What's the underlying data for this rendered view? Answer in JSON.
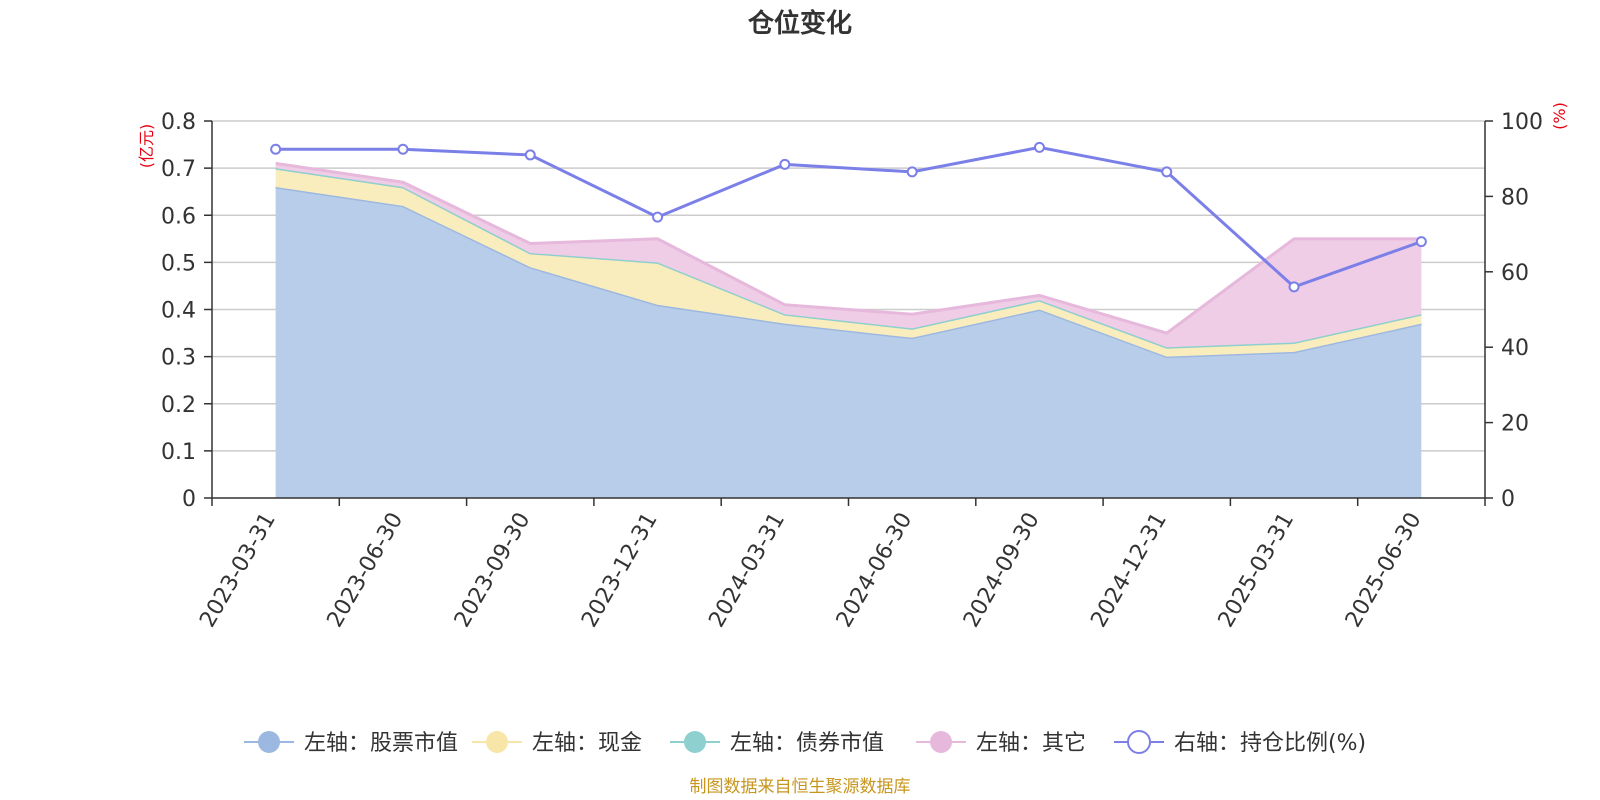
{
  "chart_data": {
    "type": "area",
    "title": "仓位变化",
    "left_unit": "(亿元)",
    "right_unit": "(%)",
    "categories": [
      "2023-03-31",
      "2023-06-30",
      "2023-09-30",
      "2023-12-31",
      "2024-03-31",
      "2024-06-30",
      "2024-09-30",
      "2024-12-31",
      "2025-03-31",
      "2025-06-30"
    ],
    "left_axis": {
      "min": 0,
      "max": 0.8,
      "ticks": [
        "0",
        "0.1",
        "0.2",
        "0.3",
        "0.4",
        "0.5",
        "0.6",
        "0.7",
        "0.8"
      ]
    },
    "right_axis": {
      "min": 0,
      "max": 100,
      "ticks": [
        "0",
        "20",
        "40",
        "60",
        "80",
        "100"
      ]
    },
    "series": [
      {
        "name": "左轴：股票市值",
        "axis": "left",
        "stack": true,
        "color": "#9db8e0",
        "fill": "#b8cdea",
        "values": [
          0.66,
          0.62,
          0.49,
          0.41,
          0.37,
          0.34,
          0.4,
          0.3,
          0.31,
          0.37
        ]
      },
      {
        "name": "左轴：现金",
        "axis": "left",
        "stack": true,
        "color": "#f8e6a8",
        "fill": "#faedbd",
        "values": [
          0.04,
          0.04,
          0.03,
          0.09,
          0.02,
          0.02,
          0.02,
          0.02,
          0.02,
          0.02
        ]
      },
      {
        "name": "左轴：债券市值",
        "axis": "left",
        "stack": true,
        "color": "#8ecfcf",
        "fill": "#a8dcdc",
        "values": [
          0,
          0,
          0,
          0,
          0,
          0,
          0,
          0,
          0,
          0
        ]
      },
      {
        "name": "左轴：其它",
        "axis": "left",
        "stack": true,
        "color": "#e6b8dc",
        "fill": "#efcde6",
        "values": [
          0.01,
          0.01,
          0.02,
          0.05,
          0.02,
          0.03,
          0.01,
          0.03,
          0.22,
          0.16
        ]
      },
      {
        "name": "右轴：持仓比例(%)",
        "axis": "right",
        "stack": false,
        "color": "#7b7fe8",
        "values": [
          92.5,
          92.5,
          91,
          74.5,
          88.5,
          86.5,
          93,
          86.5,
          56,
          68
        ]
      }
    ],
    "grid": true,
    "legend_position": "bottom",
    "source_note": "制图数据来自恒生聚源数据库"
  }
}
